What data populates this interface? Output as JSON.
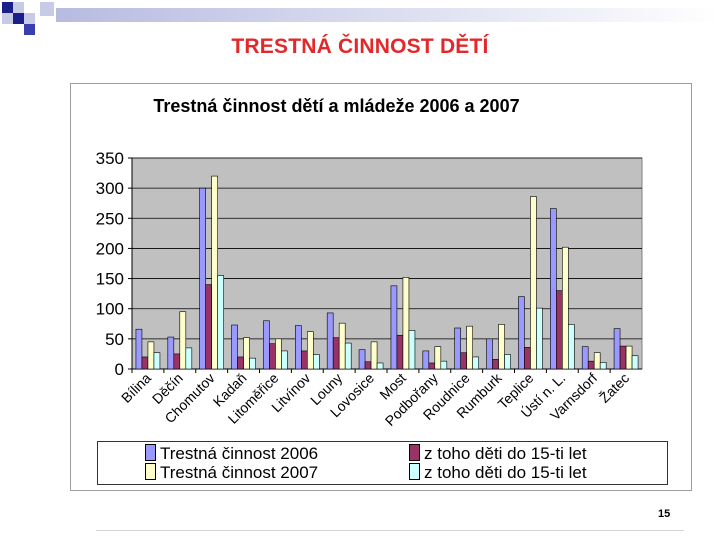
{
  "slide": {
    "title": "TRESTNÁ ČINNOST DĚTÍ",
    "page_number": "15"
  },
  "colors": {
    "title_red": "#e2282a",
    "plot_bg": "#c0c0c0",
    "s2006": "#9999ff",
    "s2007": "#ffffcc",
    "kids2006": "#993366",
    "kids2007": "#ccffff"
  },
  "chart_data": {
    "type": "bar",
    "title": "Trestná činnost dětí a mládeže 2006 a 2007",
    "xlabel": "",
    "ylabel": "",
    "ylim": [
      0,
      350
    ],
    "yticks": [
      0,
      50,
      100,
      150,
      200,
      250,
      300,
      350
    ],
    "grid": true,
    "legend_position": "bottom",
    "categories": [
      "Bílina",
      "Děčín",
      "Chomutov",
      "Kadaň",
      "Litoměřice",
      "Litvínov",
      "Louny",
      "Lovosice",
      "Most",
      "Podbořany",
      "Roudnice",
      "Rumburk",
      "Teplice",
      "Ústí n. L.",
      "Varnsdorf",
      "Žatec"
    ],
    "series": [
      {
        "name": "Trestná činnost 2006",
        "values": [
          66,
          53,
          300,
          73,
          80,
          72,
          93,
          32,
          138,
          30,
          68,
          50,
          120,
          266,
          37,
          67
        ]
      },
      {
        "name": "z toho děti do 15-ti let",
        "values": [
          20,
          25,
          140,
          20,
          42,
          30,
          52,
          12,
          56,
          10,
          27,
          16,
          36,
          130,
          13,
          38
        ]
      },
      {
        "name": "Trestná činnost 2007",
        "values": [
          45,
          95,
          320,
          52,
          50,
          62,
          76,
          45,
          152,
          37,
          71,
          74,
          286,
          202,
          27,
          38
        ]
      },
      {
        "name": "z toho děti do 15-ti let",
        "values": [
          27,
          35,
          155,
          18,
          30,
          24,
          43,
          10,
          64,
          13,
          20,
          24,
          101,
          74,
          11,
          22
        ]
      }
    ]
  }
}
